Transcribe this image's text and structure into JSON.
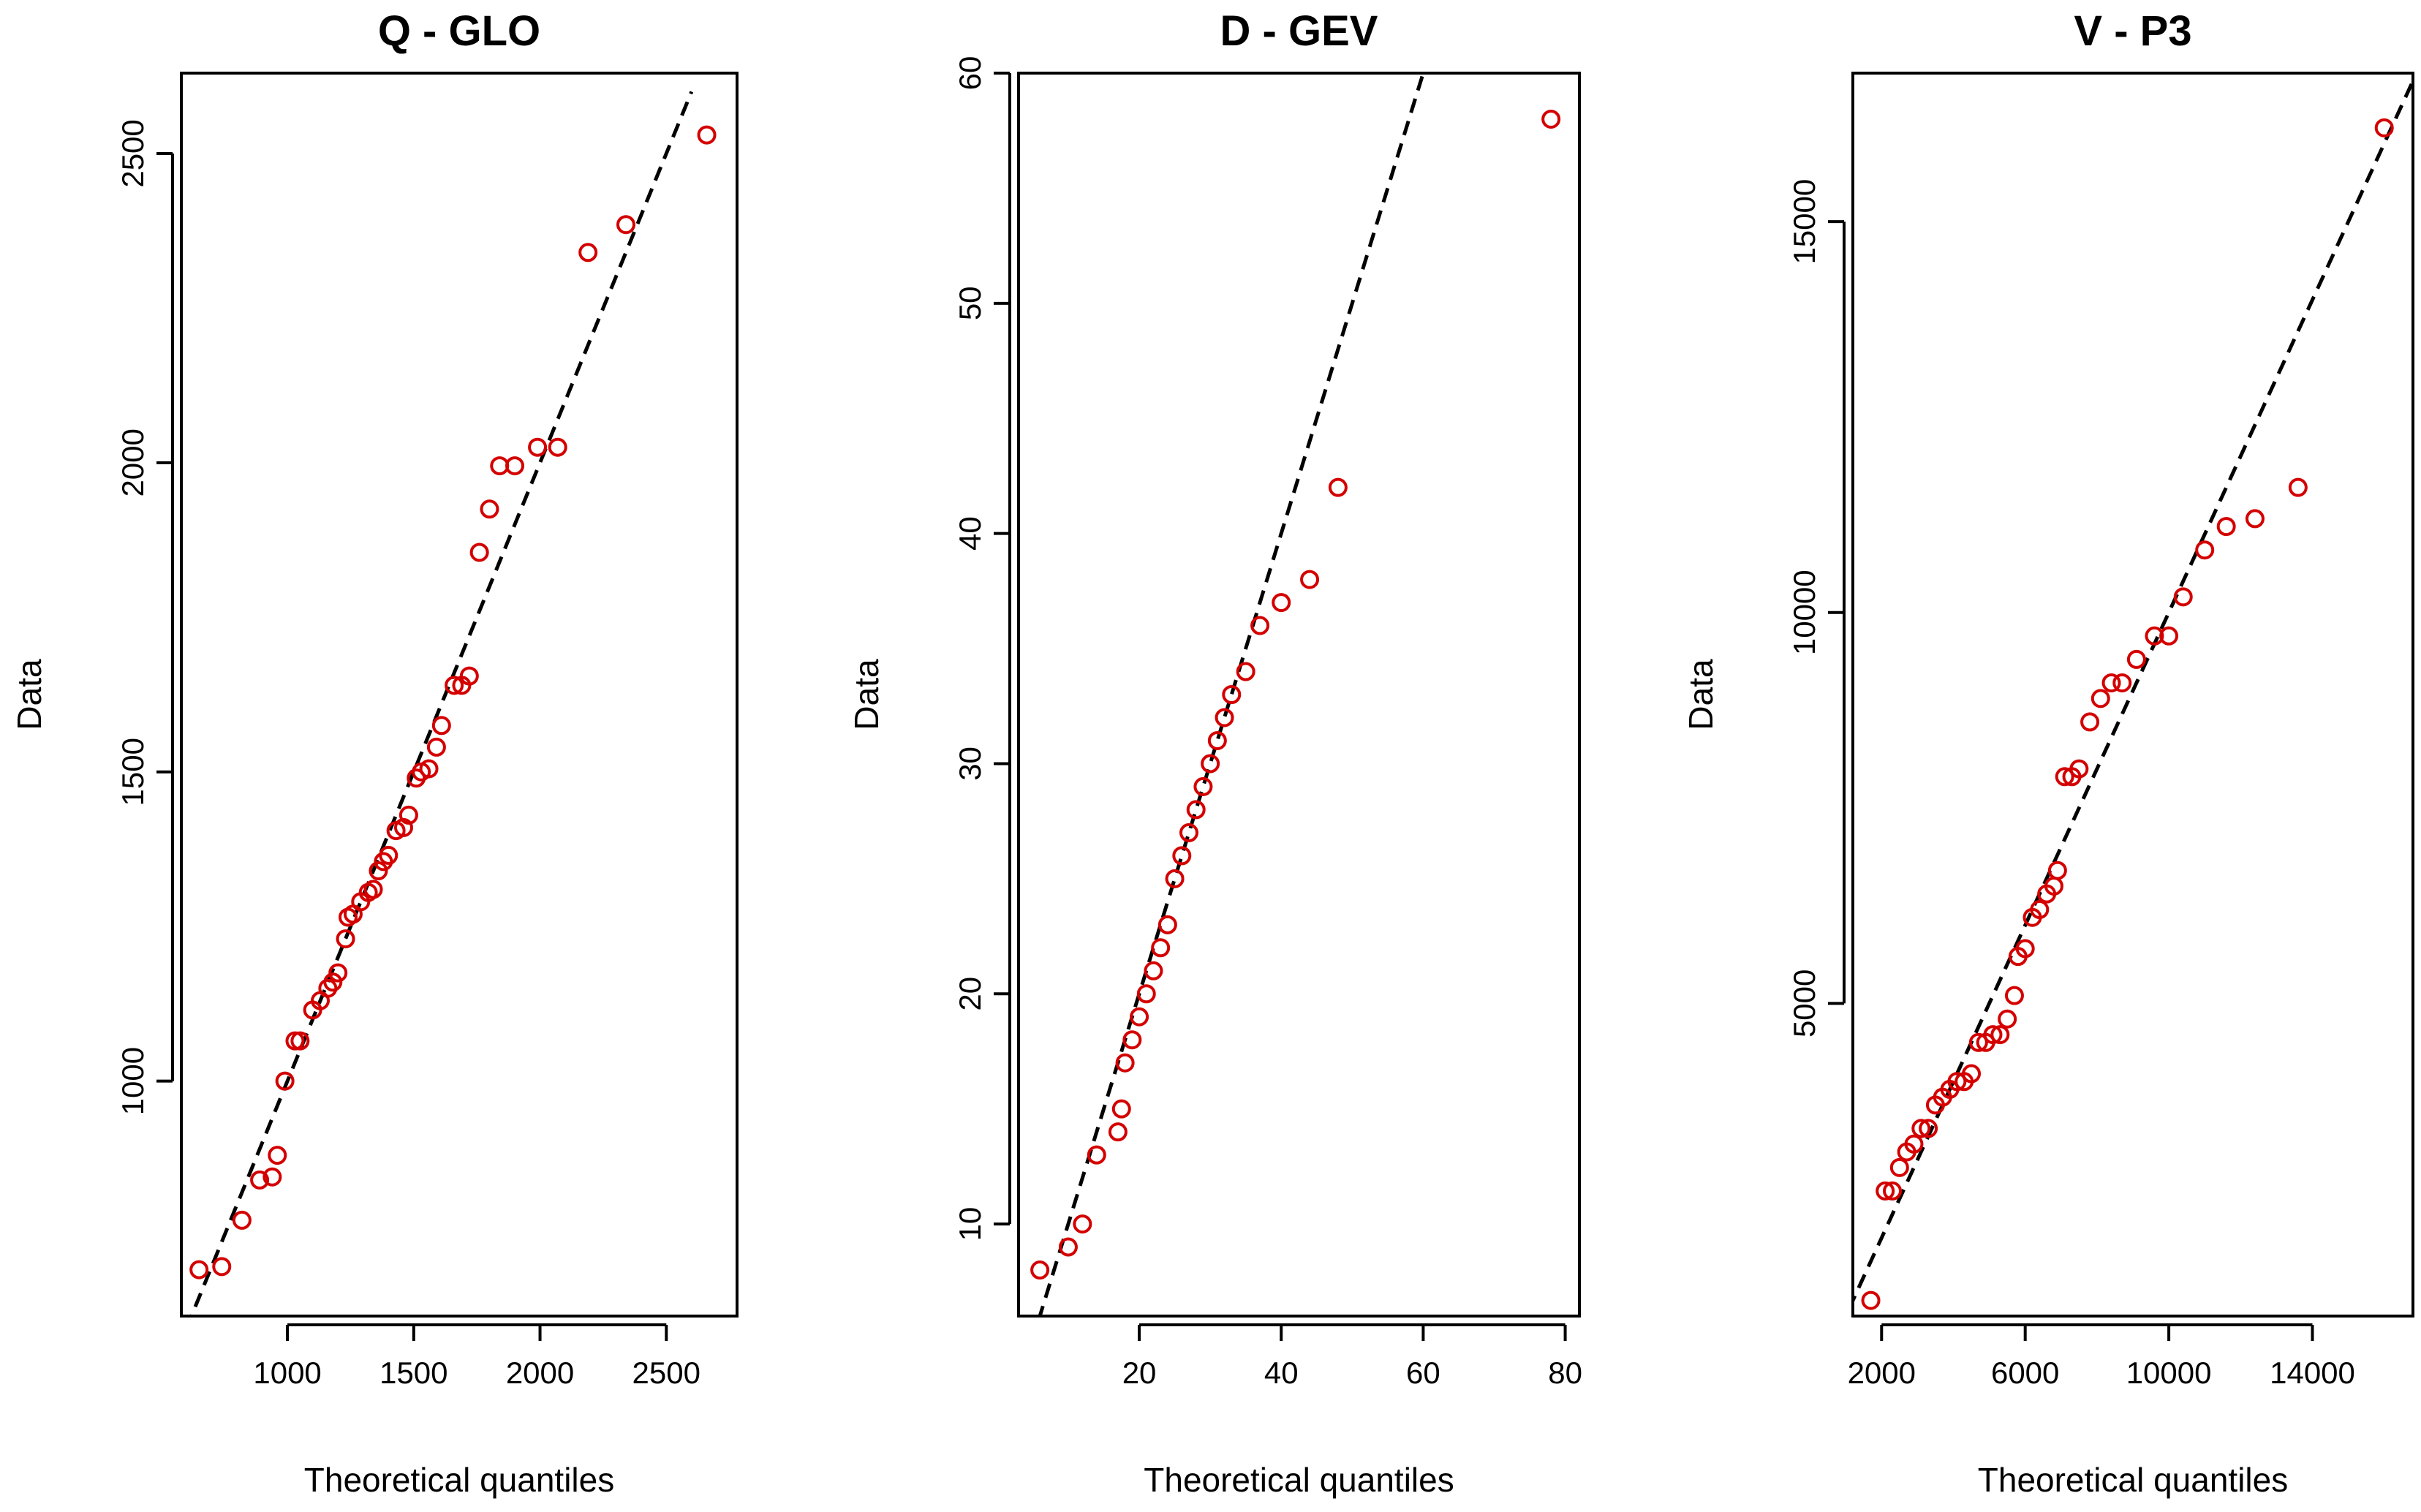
{
  "colors": {
    "points": "#d40000",
    "line": "#000000",
    "frame": "#000000"
  },
  "chart_data": [
    {
      "type": "scatter",
      "title": "Q - GLO",
      "xlabel": "Theoretical quantiles",
      "ylabel": "Data",
      "xlim": [
        580,
        2780
      ],
      "ylim": [
        620,
        2630
      ],
      "xticks": [
        1000,
        1500,
        2000,
        2500
      ],
      "yticks": [
        1000,
        1500,
        2000,
        2500
      ],
      "reference_line": [
        [
          600,
          600
        ],
        [
          2600,
          2600
        ]
      ],
      "points": [
        [
          650,
          695
        ],
        [
          740,
          700
        ],
        [
          820,
          775
        ],
        [
          890,
          840
        ],
        [
          940,
          845
        ],
        [
          960,
          880
        ],
        [
          990,
          1000
        ],
        [
          1030,
          1065
        ],
        [
          1050,
          1065
        ],
        [
          1100,
          1115
        ],
        [
          1130,
          1130
        ],
        [
          1160,
          1150
        ],
        [
          1180,
          1160
        ],
        [
          1200,
          1175
        ],
        [
          1230,
          1230
        ],
        [
          1240,
          1265
        ],
        [
          1260,
          1270
        ],
        [
          1290,
          1290
        ],
        [
          1320,
          1305
        ],
        [
          1340,
          1310
        ],
        [
          1360,
          1340
        ],
        [
          1380,
          1355
        ],
        [
          1400,
          1365
        ],
        [
          1430,
          1405
        ],
        [
          1460,
          1410
        ],
        [
          1480,
          1430
        ],
        [
          1510,
          1490
        ],
        [
          1530,
          1500
        ],
        [
          1560,
          1505
        ],
        [
          1590,
          1540
        ],
        [
          1610,
          1575
        ],
        [
          1660,
          1640
        ],
        [
          1690,
          1640
        ],
        [
          1720,
          1655
        ],
        [
          1760,
          1855
        ],
        [
          1800,
          1925
        ],
        [
          1840,
          1995
        ],
        [
          1900,
          1995
        ],
        [
          1990,
          2025
        ],
        [
          2070,
          2025
        ],
        [
          2190,
          2340
        ],
        [
          2340,
          2385
        ],
        [
          2660,
          2530
        ]
      ]
    },
    {
      "type": "scatter",
      "title": "D - GEV",
      "xlabel": "Theoretical quantiles",
      "ylabel": "Data",
      "xlim": [
        3,
        82
      ],
      "ylim": [
        6,
        60
      ],
      "xticks": [
        20,
        40,
        60,
        80
      ],
      "yticks": [
        10,
        20,
        30,
        40,
        50,
        60
      ],
      "reference_line": [
        [
          0,
          0
        ],
        [
          80,
          80
        ]
      ],
      "points": [
        [
          6,
          8
        ],
        [
          10,
          9
        ],
        [
          12,
          10
        ],
        [
          14,
          13
        ],
        [
          17,
          14
        ],
        [
          17.5,
          15
        ],
        [
          18,
          17
        ],
        [
          19,
          18
        ],
        [
          20,
          19
        ],
        [
          21,
          20
        ],
        [
          22,
          21
        ],
        [
          23,
          22
        ],
        [
          24,
          23
        ],
        [
          25,
          25
        ],
        [
          26,
          26
        ],
        [
          27,
          27
        ],
        [
          28,
          28
        ],
        [
          29,
          29
        ],
        [
          30,
          30
        ],
        [
          31,
          31
        ],
        [
          32,
          32
        ],
        [
          33,
          33
        ],
        [
          35,
          34
        ],
        [
          37,
          36
        ],
        [
          40,
          37
        ],
        [
          44,
          38
        ],
        [
          48,
          42
        ],
        [
          78,
          58
        ]
      ]
    },
    {
      "type": "scatter",
      "title": "V - P3",
      "xlabel": "Theoretical quantiles",
      "ylabel": "Data",
      "xlim": [
        1200,
        16800
      ],
      "ylim": [
        1000,
        16900
      ],
      "xticks": [
        2000,
        6000,
        10000,
        14000
      ],
      "yticks": [
        5000,
        10000,
        15000
      ],
      "reference_line": [
        [
          0,
          0
        ],
        [
          17000,
          17000
        ]
      ],
      "points": [
        [
          1700,
          1200
        ],
        [
          2100,
          2600
        ],
        [
          2300,
          2600
        ],
        [
          2500,
          2900
        ],
        [
          2700,
          3100
        ],
        [
          2900,
          3200
        ],
        [
          3100,
          3400
        ],
        [
          3300,
          3400
        ],
        [
          3500,
          3700
        ],
        [
          3700,
          3800
        ],
        [
          3900,
          3900
        ],
        [
          4100,
          4000
        ],
        [
          4300,
          4000
        ],
        [
          4500,
          4100
        ],
        [
          4700,
          4500
        ],
        [
          4900,
          4500
        ],
        [
          5100,
          4600
        ],
        [
          5300,
          4600
        ],
        [
          5500,
          4800
        ],
        [
          5700,
          5100
        ],
        [
          5800,
          5600
        ],
        [
          6000,
          5700
        ],
        [
          6200,
          6100
        ],
        [
          6400,
          6200
        ],
        [
          6600,
          6400
        ],
        [
          6800,
          6500
        ],
        [
          6900,
          6700
        ],
        [
          7100,
          7900
        ],
        [
          7300,
          7900
        ],
        [
          7500,
          8000
        ],
        [
          7800,
          8600
        ],
        [
          8100,
          8900
        ],
        [
          8400,
          9100
        ],
        [
          8700,
          9100
        ],
        [
          9100,
          9400
        ],
        [
          9600,
          9700
        ],
        [
          10000,
          9700
        ],
        [
          10400,
          10200
        ],
        [
          11000,
          10800
        ],
        [
          11600,
          11100
        ],
        [
          12400,
          11200
        ],
        [
          13600,
          11600
        ],
        [
          16000,
          16200
        ]
      ]
    }
  ]
}
